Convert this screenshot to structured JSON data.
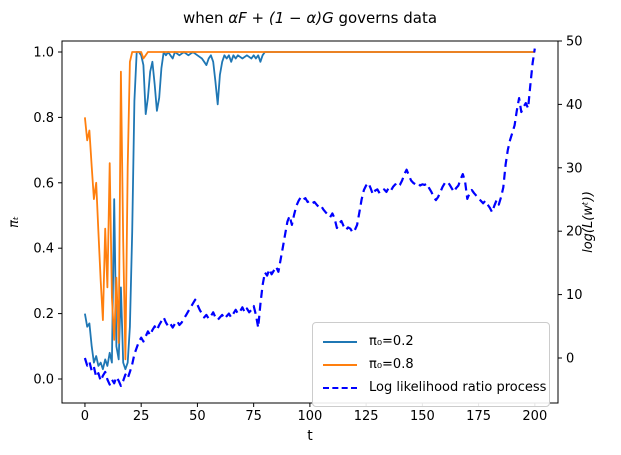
{
  "figure": {
    "title_prefix": "when ",
    "title_math": "αF + (1 − α)G",
    "title_suffix": " governs data"
  },
  "chart_data": {
    "type": "line",
    "title": "when αF + (1 − α)G governs data",
    "xlabel": "t",
    "ylabel_left": "πₜ",
    "ylabel_right": "log(L(wᵗ))",
    "xlim": [
      -10.2,
      210.3
    ],
    "ylim_left": [
      -0.0734,
      1.0336
    ],
    "ylim_right": [
      -7.1,
      50.0
    ],
    "x_ticks": [
      0,
      25,
      50,
      75,
      100,
      125,
      150,
      175,
      200
    ],
    "y_ticks_left": [
      "0.0",
      "0.2",
      "0.4",
      "0.6",
      "0.8",
      "1.0"
    ],
    "y_ticks_right": [
      "0",
      "10",
      "20",
      "30",
      "40",
      "50"
    ],
    "grid": false,
    "legend_position": "lower right",
    "frame_color": "#000000",
    "series": [
      {
        "name": "π₀=0.2",
        "color": "#1f77b4",
        "dash": "solid",
        "width": 1.8,
        "axis": "left",
        "points": [
          [
            0,
            0.2
          ],
          [
            1,
            0.16
          ],
          [
            2,
            0.17
          ],
          [
            3,
            0.1
          ],
          [
            4,
            0.05
          ],
          [
            5,
            0.07
          ],
          [
            6,
            0.04
          ],
          [
            7,
            0.05
          ],
          [
            8,
            0.03
          ],
          [
            9,
            0.06
          ],
          [
            10,
            0.04
          ],
          [
            11,
            0.08
          ],
          [
            12,
            0.05
          ],
          [
            13,
            0.55
          ],
          [
            14,
            0.1
          ],
          [
            15,
            0.06
          ],
          [
            16,
            0.28
          ],
          [
            17,
            0.05
          ],
          [
            18,
            0.03
          ],
          [
            19,
            0.05
          ],
          [
            20,
            0.16
          ],
          [
            21,
            0.45
          ],
          [
            22,
            0.85
          ],
          [
            23,
            1.0
          ],
          [
            24,
            1.0
          ],
          [
            25,
            0.99
          ],
          [
            26,
            0.96
          ],
          [
            27,
            0.81
          ],
          [
            28,
            0.86
          ],
          [
            29,
            0.94
          ],
          [
            30,
            0.97
          ],
          [
            31,
            0.9
          ],
          [
            32,
            0.82
          ],
          [
            33,
            0.86
          ],
          [
            34,
            0.95
          ],
          [
            35,
            1.0
          ],
          [
            36,
            0.99
          ],
          [
            37,
            1.0
          ],
          [
            38,
            0.99
          ],
          [
            39,
            0.98
          ],
          [
            40,
            1.0
          ],
          [
            42,
            0.99
          ],
          [
            44,
            1.0
          ],
          [
            46,
            0.99
          ],
          [
            48,
            1.0
          ],
          [
            50,
            0.99
          ],
          [
            52,
            0.98
          ],
          [
            53,
            0.97
          ],
          [
            54,
            0.96
          ],
          [
            55,
            0.98
          ],
          [
            56,
            0.99
          ],
          [
            57,
            0.97
          ],
          [
            58,
            0.91
          ],
          [
            59,
            0.84
          ],
          [
            60,
            0.93
          ],
          [
            61,
            0.97
          ],
          [
            62,
            0.99
          ],
          [
            63,
            0.98
          ],
          [
            64,
            0.99
          ],
          [
            65,
            0.97
          ],
          [
            66,
            0.99
          ],
          [
            67,
            0.98
          ],
          [
            68,
            0.99
          ],
          [
            70,
            0.98
          ],
          [
            72,
            0.99
          ],
          [
            74,
            0.98
          ],
          [
            75,
            0.99
          ],
          [
            76,
            0.98
          ],
          [
            77,
            0.99
          ],
          [
            78,
            0.97
          ],
          [
            79,
            0.99
          ],
          [
            80,
            1.0
          ],
          [
            200,
            1.0
          ]
        ]
      },
      {
        "name": "π₀=0.8",
        "color": "#ff7f0e",
        "dash": "solid",
        "width": 1.8,
        "axis": "left",
        "points": [
          [
            0,
            0.8
          ],
          [
            1,
            0.73
          ],
          [
            2,
            0.76
          ],
          [
            3,
            0.65
          ],
          [
            4,
            0.55
          ],
          [
            5,
            0.6
          ],
          [
            6,
            0.45
          ],
          [
            7,
            0.3
          ],
          [
            8,
            0.18
          ],
          [
            9,
            0.46
          ],
          [
            10,
            0.28
          ],
          [
            11,
            0.66
          ],
          [
            12,
            0.25
          ],
          [
            13,
            0.12
          ],
          [
            14,
            0.31
          ],
          [
            15,
            0.11
          ],
          [
            16,
            0.94
          ],
          [
            17,
            0.42
          ],
          [
            18,
            0.06
          ],
          [
            19,
            0.65
          ],
          [
            20,
            0.97
          ],
          [
            21,
            1.0
          ],
          [
            25,
            1.0
          ],
          [
            26,
            0.98
          ],
          [
            27,
            0.99
          ],
          [
            28,
            1.0
          ],
          [
            200,
            1.0
          ]
        ]
      },
      {
        "name": "Log likelihood ratio process",
        "color": "#0000ff",
        "dash": "dashed",
        "width": 2.2,
        "axis": "right",
        "points": [
          [
            0,
            0
          ],
          [
            1,
            -1.2
          ],
          [
            2,
            -0.6
          ],
          [
            3,
            -2
          ],
          [
            4,
            -1.4
          ],
          [
            5,
            -3
          ],
          [
            6,
            -2.4
          ],
          [
            7,
            -3.6
          ],
          [
            8,
            -2.8
          ],
          [
            9,
            -2.2
          ],
          [
            10,
            -3.4
          ],
          [
            11,
            -4.2
          ],
          [
            12,
            -3.4
          ],
          [
            13,
            -4
          ],
          [
            14,
            -3
          ],
          [
            15,
            -3.6
          ],
          [
            16,
            -4.4
          ],
          [
            17,
            -3.6
          ],
          [
            18,
            -2.6
          ],
          [
            19,
            -3.2
          ],
          [
            20,
            -2.2
          ],
          [
            21,
            -1
          ],
          [
            22,
            0.6
          ],
          [
            23,
            1.6
          ],
          [
            24,
            2.6
          ],
          [
            25,
            3.2
          ],
          [
            26,
            2.6
          ],
          [
            27,
            3.4
          ],
          [
            28,
            4.2
          ],
          [
            29,
            3.6
          ],
          [
            30,
            4.4
          ],
          [
            31,
            5
          ],
          [
            32,
            4.4
          ],
          [
            33,
            5.2
          ],
          [
            34,
            5.8
          ],
          [
            35,
            6.4
          ],
          [
            36,
            5.6
          ],
          [
            37,
            5
          ],
          [
            38,
            5.4
          ],
          [
            39,
            4.8
          ],
          [
            40,
            5.4
          ],
          [
            41,
            5.8
          ],
          [
            42,
            5.2
          ],
          [
            43,
            5.6
          ],
          [
            44,
            6.2
          ],
          [
            45,
            6.8
          ],
          [
            46,
            7.4
          ],
          [
            47,
            8
          ],
          [
            48,
            8.6
          ],
          [
            49,
            9.2
          ],
          [
            50,
            8.4
          ],
          [
            51,
            7.6
          ],
          [
            52,
            7
          ],
          [
            53,
            6.4
          ],
          [
            54,
            6.8
          ],
          [
            55,
            6.2
          ],
          [
            56,
            6.6
          ],
          [
            57,
            7.2
          ],
          [
            58,
            6.4
          ],
          [
            59,
            6
          ],
          [
            60,
            6.4
          ],
          [
            61,
            6.8
          ],
          [
            62,
            6.2
          ],
          [
            63,
            6.6
          ],
          [
            64,
            7
          ],
          [
            65,
            6.4
          ],
          [
            66,
            7
          ],
          [
            67,
            7.6
          ],
          [
            68,
            7
          ],
          [
            69,
            7.4
          ],
          [
            70,
            8
          ],
          [
            71,
            7.2
          ],
          [
            72,
            7.8
          ],
          [
            73,
            7.2
          ],
          [
            74,
            7.6
          ],
          [
            75,
            8.2
          ],
          [
            76,
            6.8
          ],
          [
            77,
            4.8
          ],
          [
            78,
            8.5
          ],
          [
            79,
            11.5
          ],
          [
            80,
            13.5
          ],
          [
            81,
            13
          ],
          [
            82,
            14
          ],
          [
            83,
            13.2
          ],
          [
            84,
            13.8
          ],
          [
            85,
            14.4
          ],
          [
            86,
            13.6
          ],
          [
            87,
            15.5
          ],
          [
            88,
            17.5
          ],
          [
            89,
            19.5
          ],
          [
            90,
            21.5
          ],
          [
            91,
            22.4
          ],
          [
            92,
            21
          ],
          [
            93,
            22.6
          ],
          [
            94,
            24
          ],
          [
            95,
            24.8
          ],
          [
            96,
            25.4
          ],
          [
            97,
            25
          ],
          [
            98,
            25.2
          ],
          [
            99,
            24.6
          ],
          [
            100,
            24.8
          ],
          [
            101,
            24.4
          ],
          [
            102,
            24.6
          ],
          [
            103,
            24.2
          ],
          [
            104,
            23.8
          ],
          [
            105,
            24
          ],
          [
            106,
            23.4
          ],
          [
            107,
            23
          ],
          [
            108,
            22.6
          ],
          [
            109,
            22.2
          ],
          [
            110,
            22.8
          ],
          [
            111,
            22
          ],
          [
            112,
            20.5
          ],
          [
            113,
            21.2
          ],
          [
            114,
            21.6
          ],
          [
            115,
            20.8
          ],
          [
            116,
            20.2
          ],
          [
            117,
            20.6
          ],
          [
            118,
            20.4
          ],
          [
            119,
            19.8
          ],
          [
            120,
            20.2
          ],
          [
            121,
            21
          ],
          [
            122,
            23
          ],
          [
            123,
            25
          ],
          [
            124,
            26.5
          ],
          [
            125,
            27.2
          ],
          [
            126,
            27.6
          ],
          [
            127,
            26.8
          ],
          [
            128,
            25.8
          ],
          [
            129,
            26.4
          ],
          [
            130,
            26.6
          ],
          [
            131,
            26
          ],
          [
            132,
            26.3
          ],
          [
            133,
            26.6
          ],
          [
            134,
            26.2
          ],
          [
            135,
            26.8
          ],
          [
            136,
            26.4
          ],
          [
            137,
            27
          ],
          [
            138,
            27.4
          ],
          [
            139,
            27
          ],
          [
            140,
            27.3
          ],
          [
            141,
            28
          ],
          [
            142,
            29
          ],
          [
            143,
            29.7
          ],
          [
            144,
            28.8
          ],
          [
            145,
            28
          ],
          [
            146,
            27.6
          ],
          [
            147,
            27.4
          ],
          [
            148,
            27.6
          ],
          [
            149,
            27.2
          ],
          [
            150,
            27.4
          ],
          [
            151,
            27.3
          ],
          [
            152,
            27.5
          ],
          [
            153,
            26.8
          ],
          [
            154,
            26.2
          ],
          [
            155,
            25.4
          ],
          [
            156,
            24.9
          ],
          [
            157,
            25.4
          ],
          [
            158,
            26.2
          ],
          [
            159,
            27
          ],
          [
            160,
            27.6
          ],
          [
            161,
            27.8
          ],
          [
            162,
            27.4
          ],
          [
            163,
            26.8
          ],
          [
            164,
            26.2
          ],
          [
            165,
            26.8
          ],
          [
            166,
            27.2
          ],
          [
            167,
            28.2
          ],
          [
            168,
            29
          ],
          [
            169,
            27.8
          ],
          [
            170,
            25.1
          ],
          [
            171,
            26
          ],
          [
            172,
            26.5
          ],
          [
            173,
            26
          ],
          [
            174,
            25.6
          ],
          [
            175,
            25.2
          ],
          [
            176,
            24.8
          ],
          [
            177,
            24.4
          ],
          [
            178,
            24.8
          ],
          [
            179,
            24.2
          ],
          [
            180,
            23.7
          ],
          [
            181,
            23
          ],
          [
            182,
            24
          ],
          [
            183,
            24.9
          ],
          [
            184,
            24.2
          ],
          [
            185,
            25.4
          ],
          [
            186,
            26.9
          ],
          [
            187,
            30.5
          ],
          [
            188,
            32.8
          ],
          [
            189,
            34.4
          ],
          [
            190,
            35.5
          ],
          [
            191,
            36.7
          ],
          [
            192,
            39
          ],
          [
            193,
            41
          ],
          [
            194,
            38.8
          ],
          [
            195,
            39.6
          ],
          [
            196,
            40.2
          ],
          [
            197,
            39.4
          ],
          [
            198,
            43
          ],
          [
            199,
            46.5
          ],
          [
            200,
            48.8
          ]
        ]
      }
    ]
  }
}
